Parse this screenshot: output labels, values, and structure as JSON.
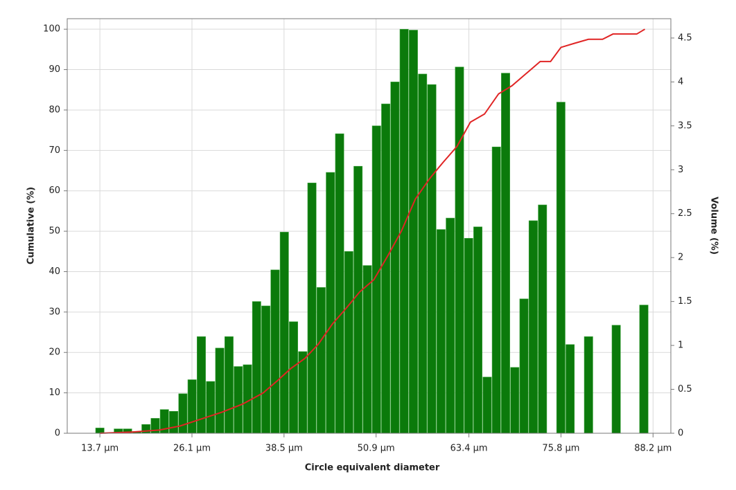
{
  "chart_data": {
    "type": "histogram",
    "x_label": "Circle equivalent diameter",
    "y_label": "Cumulative (%)",
    "y2_label": "Volume (%)",
    "bins": [
      13.08,
      14.32,
      15.56,
      16.81,
      18.05,
      19.29,
      20.53,
      21.77,
      23.01,
      24.26,
      25.5,
      26.74,
      27.98,
      29.22,
      30.47,
      31.71,
      32.95,
      34.19,
      35.43,
      36.67,
      37.92,
      39.16,
      40.4,
      41.64,
      42.88,
      44.12,
      45.37,
      46.61,
      47.85,
      49.09,
      50.33,
      51.58,
      52.82,
      54.06,
      55.3,
      56.54,
      57.78,
      59.03,
      60.27,
      61.51,
      62.75,
      63.99,
      65.23,
      66.48,
      67.72,
      68.96,
      70.2,
      71.44,
      72.69,
      73.93,
      75.17,
      76.41,
      77.65,
      78.89,
      80.14,
      81.38,
      82.62,
      83.86,
      85.1,
      86.34,
      87.59,
      88.83
    ],
    "series": [
      {
        "type": "histogram",
        "axis": "y2",
        "color": "#0b7a0b",
        "values": [
          0.06,
          0,
          0.05,
          0.05,
          0.02,
          0.1,
          0.17,
          0.27,
          0.25,
          0.45,
          0.61,
          1.1,
          0.59,
          0.97,
          1.1,
          0.76,
          0.78,
          1.5,
          1.45,
          1.86,
          2.29,
          1.27,
          0.93,
          2.85,
          1.66,
          2.97,
          3.41,
          2.07,
          3.04,
          1.91,
          3.5,
          3.75,
          4.0,
          4.6,
          4.59,
          4.09,
          3.97,
          2.32,
          2.45,
          4.17,
          2.22,
          2.35,
          0.64,
          3.26,
          4.1,
          0.75,
          1.53,
          2.42,
          2.6,
          0,
          3.77,
          1.01,
          0,
          1.1,
          0,
          0,
          1.23,
          0,
          0,
          1.46,
          0
        ]
      },
      {
        "type": "line",
        "axis": "y",
        "color": "#e02424",
        "x": [
          13.7,
          18.0,
          21.7,
          24.5,
          27.3,
          30.1,
          32.9,
          35.7,
          37.6,
          39.4,
          41.3,
          43.1,
          45.0,
          46.9,
          48.7,
          50.6,
          52.5,
          54.3,
          56.2,
          58.1,
          59.9,
          61.8,
          63.6,
          65.5,
          67.4,
          69.2,
          71.1,
          73.0,
          74.4,
          75.8,
          77.6,
          79.5,
          81.4,
          82.8,
          86.0,
          87.1
        ],
        "values": [
          0,
          0.3,
          0.8,
          1.8,
          3.5,
          5.2,
          7.2,
          10,
          13,
          16,
          18.5,
          22,
          27,
          31,
          35,
          38,
          44,
          50,
          58,
          63,
          67,
          71,
          77,
          79,
          84,
          86,
          89,
          92,
          92,
          95.5,
          96.5,
          97.5,
          97.5,
          98.8,
          98.8,
          100
        ]
      }
    ],
    "xlim": [
      9.3,
      90.6
    ],
    "xticks": [
      {
        "value": 13.7,
        "label": "13.7 µm"
      },
      {
        "value": 26.1,
        "label": "26.1 µm"
      },
      {
        "value": 38.5,
        "label": "38.5 µm"
      },
      {
        "value": 50.9,
        "label": "50.9 µm"
      },
      {
        "value": 63.4,
        "label": "63.4 µm"
      },
      {
        "value": 75.8,
        "label": "75.8 µm"
      },
      {
        "value": 88.2,
        "label": "88.2 µm"
      }
    ],
    "ylim": [
      0,
      102.6
    ],
    "yticks": [
      0,
      10,
      20,
      30,
      40,
      50,
      60,
      70,
      80,
      90,
      100
    ],
    "y2lim": [
      0,
      4.72
    ],
    "y2ticks": [
      0,
      0.5,
      1,
      1.5,
      2,
      2.5,
      3,
      3.5,
      4,
      4.5
    ],
    "grid": true
  }
}
